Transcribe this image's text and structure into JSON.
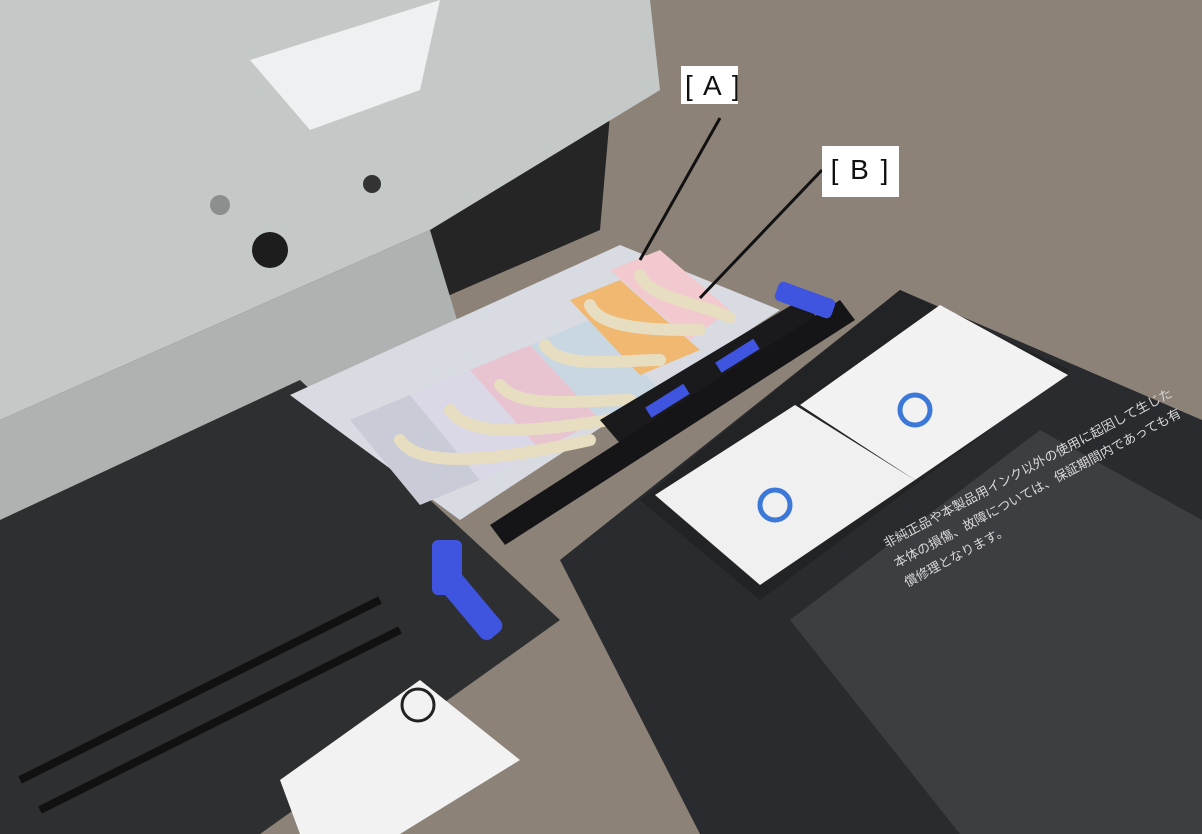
{
  "callouts": {
    "a": "[ A ]",
    "b": "[ B ]"
  },
  "printed_label_jp": "非純正品や本製品用インク以外の使用に起因して生じた\n本体の損傷、故障については、保証期間内であっても有\n償修理となります。",
  "colors": {
    "background_floor": "#8a7f74",
    "metal_frame": "#c3c8c6",
    "printer_body": "#2b2b2d",
    "lever_blue": "#3f55e0",
    "tube": "#e6dcc0",
    "callout_bg": "#ffffff",
    "leader_line": "#111111"
  }
}
